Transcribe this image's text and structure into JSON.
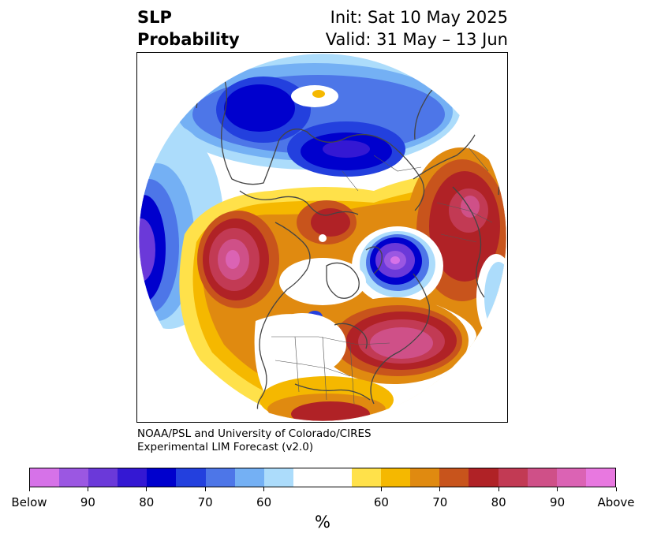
{
  "header": {
    "title_line1": "SLP",
    "title_line2": "Probability",
    "init": "Init: Sat 10 May 2025",
    "valid": "Valid: 31 May – 13 Jun"
  },
  "credit": {
    "line1": "NOAA/PSL and University of Colorado/CIRES",
    "line2": "Experimental LIM Forecast (v2.0)"
  },
  "colorbar": {
    "unit": "%",
    "colors": [
      "#d672e8",
      "#9b57e2",
      "#6b39d9",
      "#3418d3",
      "#0000cd",
      "#2340de",
      "#4d76e8",
      "#74b0f4",
      "#acdcfb",
      "#ffffff",
      "#ffffff",
      "#ffe14a",
      "#f5b800",
      "#e08a10",
      "#c8541c",
      "#b02226",
      "#c23a54",
      "#cf5088",
      "#db63b4",
      "#e878e0"
    ],
    "tick_labels": [
      "Below",
      "90",
      "80",
      "70",
      "60",
      "60",
      "70",
      "80",
      "90",
      "Above"
    ]
  },
  "map": {
    "projection": "north-polar-stereographic",
    "palette": {
      "below_strong": "#6b39d9",
      "below_mid": "#0000cd",
      "below_weak": "#4d76e8",
      "below_faint": "#acdcfb",
      "above_faint": "#ffe14a",
      "above_weak": "#f5b800",
      "above_mid": "#c8541c",
      "above_strong": "#b02226",
      "above_max": "#cf5088",
      "above_extreme": "#e878e0",
      "coastline": "#444444"
    }
  }
}
